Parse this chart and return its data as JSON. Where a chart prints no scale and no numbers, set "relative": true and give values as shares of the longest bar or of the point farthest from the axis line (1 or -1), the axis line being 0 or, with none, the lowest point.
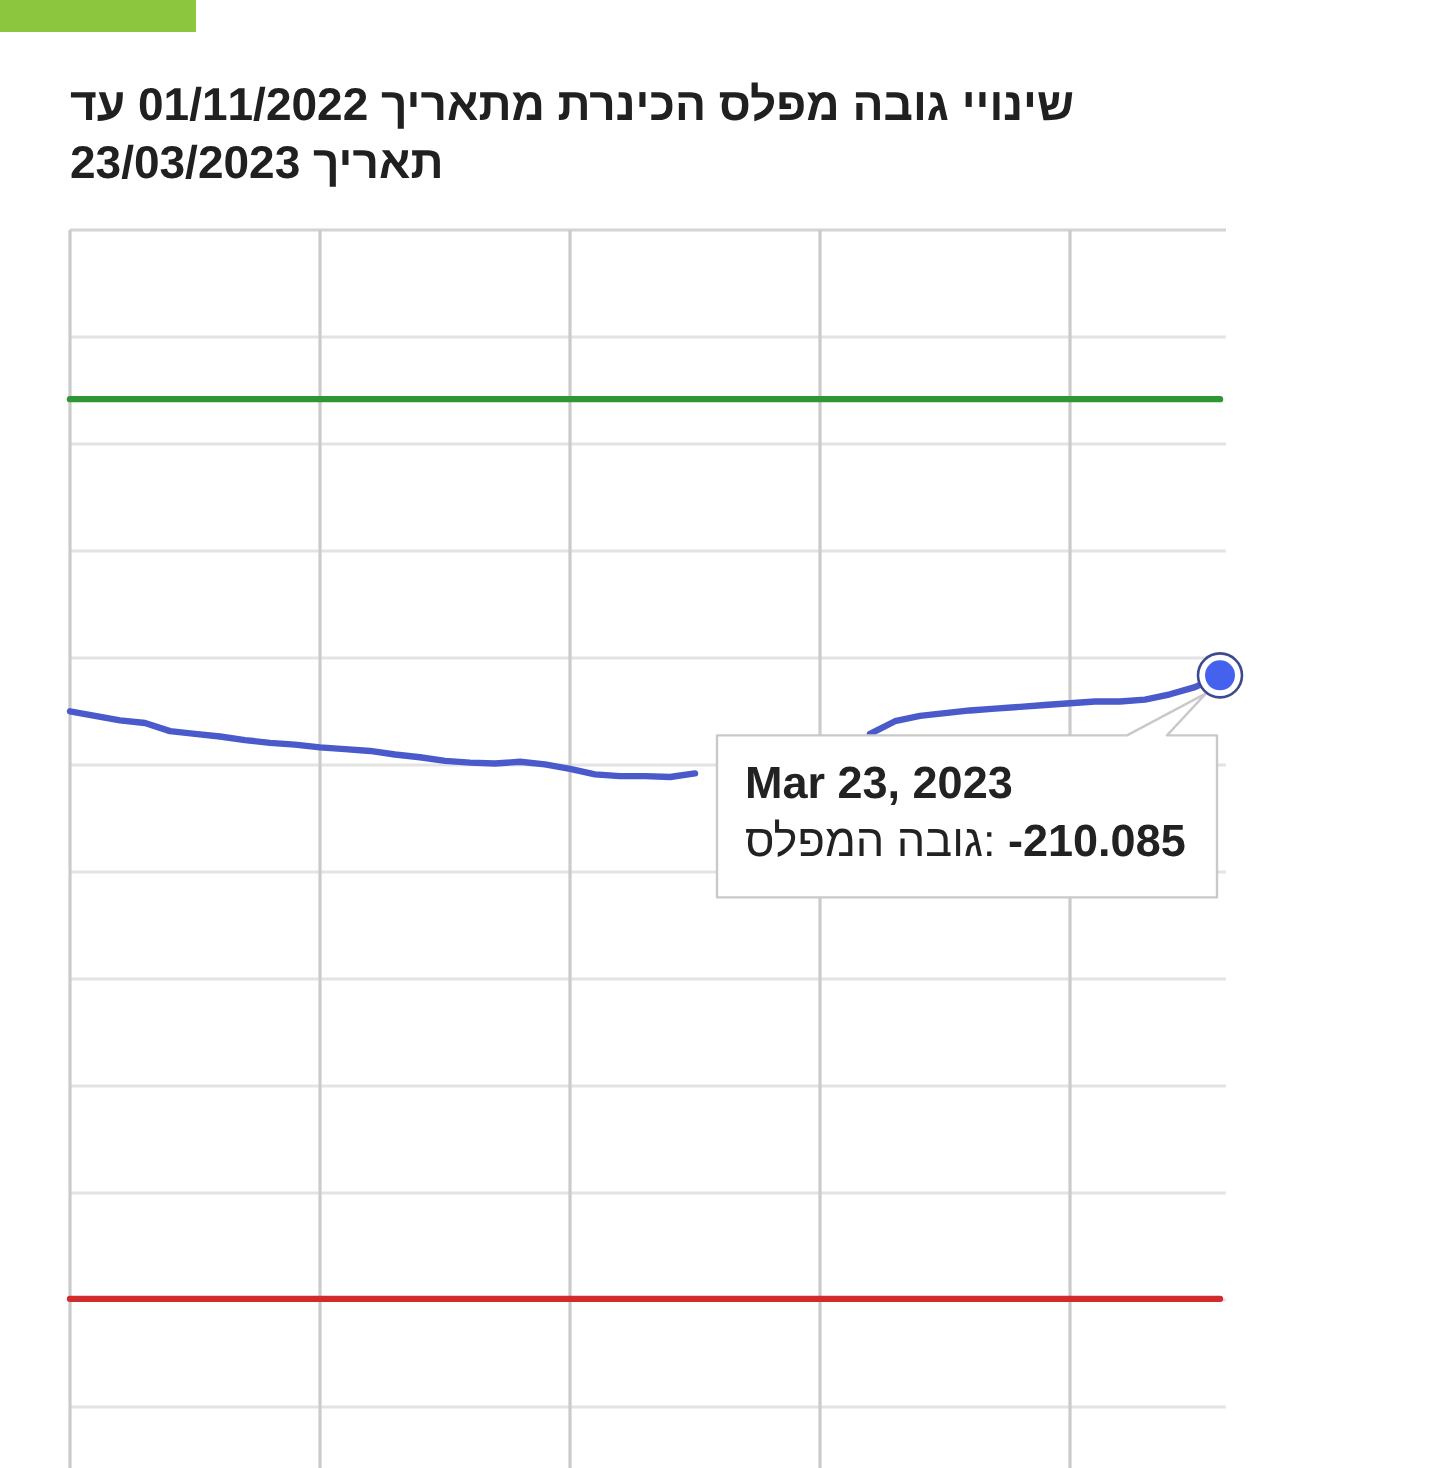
{
  "chart_data": {
    "type": "line",
    "title": "שינויי גובה מפלס הכינרת מתאריך 01/11/2022 עד תאריך 23/03/2023",
    "relative": true,
    "categories": [
      null,
      null,
      null,
      null,
      null,
      null,
      null,
      null,
      null,
      null,
      null,
      null,
      null,
      null,
      null,
      null,
      null,
      null,
      null,
      null,
      null,
      null,
      null,
      null,
      null,
      null,
      null,
      null,
      null,
      null,
      null,
      null,
      null,
      null,
      null,
      null,
      null,
      null,
      null,
      null,
      null,
      null,
      null,
      null,
      null,
      null,
      null
    ],
    "series": [
      {
        "color": "#4a5acb",
        "values": [
          0.653,
          0.648,
          0.643,
          0.64,
          0.631,
          0.628,
          0.625,
          0.621,
          0.618,
          0.616,
          0.613,
          0.611,
          0.609,
          0.605,
          0.602,
          0.598,
          0.596,
          0.595,
          0.597,
          0.594,
          0.589,
          0.583,
          0.581,
          0.581,
          0.58,
          0.584,
          null,
          null,
          null,
          null,
          null,
          null,
          0.628,
          0.642,
          0.648,
          0.651,
          0.654,
          0.656,
          0.658,
          0.66,
          0.662,
          0.664,
          0.664,
          0.666,
          0.672,
          0.68,
          0.693
        ]
      },
      {
        "color": "#2e9633",
        "values": [
          1,
          1,
          1,
          1,
          1,
          1,
          1,
          1,
          1,
          1,
          1,
          1,
          1,
          1,
          1,
          1,
          1,
          1,
          1,
          1,
          1,
          1,
          1,
          1,
          1,
          1,
          1,
          1,
          1,
          1,
          1,
          1,
          1,
          1,
          1,
          1,
          1,
          1,
          1,
          1,
          1,
          1,
          1,
          1,
          1,
          1,
          1
        ]
      },
      {
        "color": "#d22b2b",
        "values": [
          0,
          0,
          0,
          0,
          0,
          0,
          0,
          0,
          0,
          0,
          0,
          0,
          0,
          0,
          0,
          0,
          0,
          0,
          0,
          0,
          0,
          0,
          0,
          0,
          0,
          0,
          0,
          0,
          0,
          0,
          0,
          0,
          0,
          0,
          0,
          0,
          0,
          0,
          0,
          0,
          0,
          0,
          0,
          0,
          0,
          0,
          0
        ]
      }
    ],
    "grid": true,
    "annotations": [
      "Mar 23, 2023",
      "גובה המפלס: **-210.085**"
    ]
  }
}
